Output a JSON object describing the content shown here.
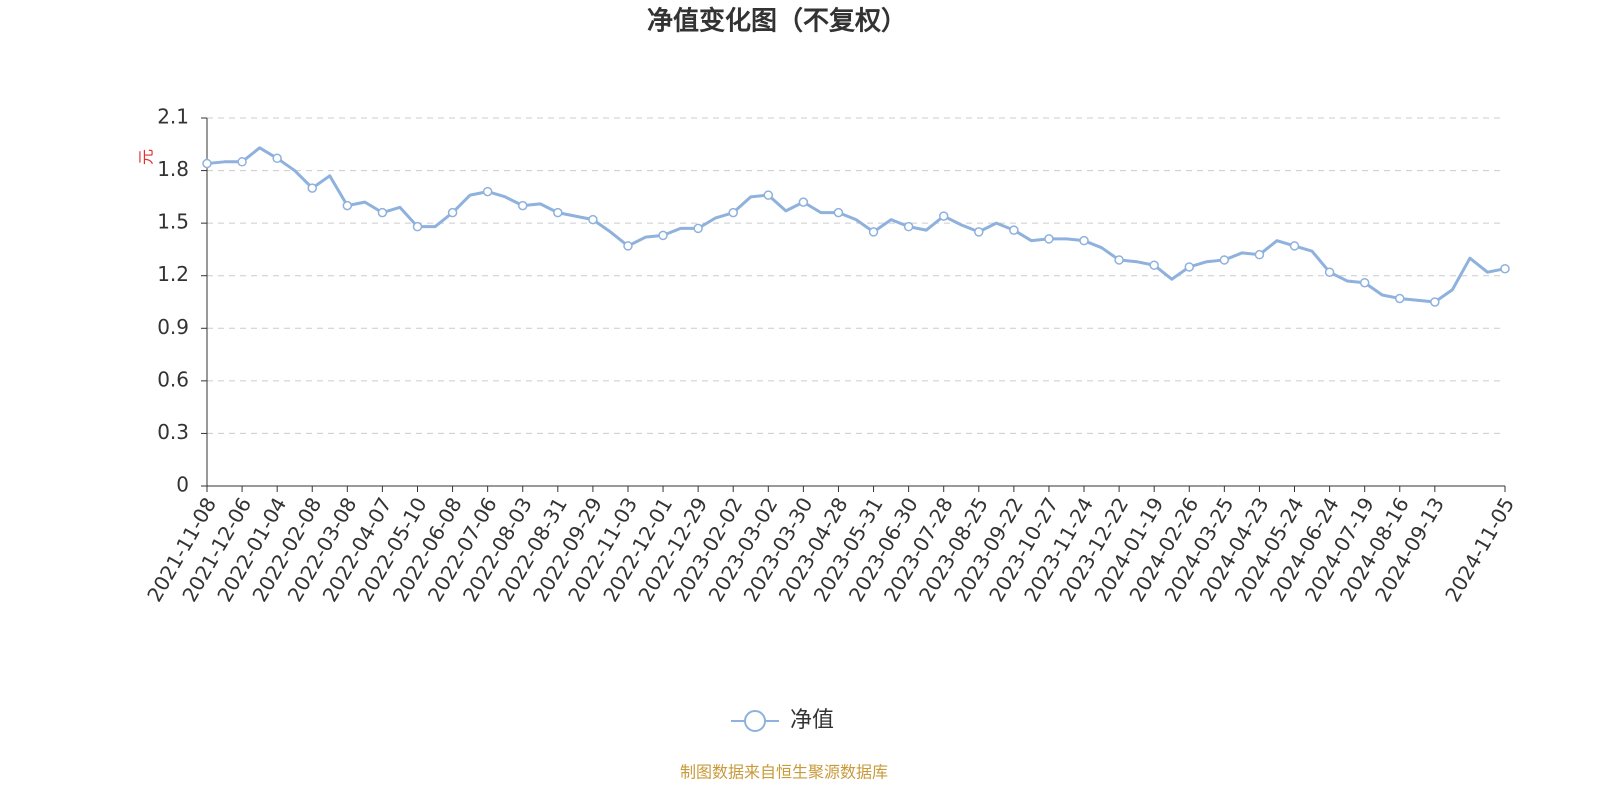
{
  "chart_data": {
    "type": "line",
    "title": "净值变化图（不复权）",
    "y_unit": "元",
    "source": "制图数据来自恒生聚源数据库",
    "categories": [
      "2021-11-08",
      null,
      "2021-12-06",
      null,
      "2022-01-04",
      null,
      "2022-02-08",
      null,
      "2022-03-08",
      null,
      "2022-04-07",
      null,
      "2022-05-10",
      null,
      "2022-06-08",
      null,
      "2022-07-06",
      null,
      "2022-08-03",
      null,
      "2022-08-31",
      null,
      "2022-09-29",
      null,
      "2022-11-03",
      null,
      "2022-12-01",
      null,
      "2022-12-29",
      null,
      "2023-02-02",
      null,
      "2023-03-02",
      null,
      "2023-03-30",
      null,
      "2023-04-28",
      null,
      "2023-05-31",
      null,
      "2023-06-30",
      null,
      "2023-07-28",
      null,
      "2023-08-25",
      null,
      "2023-09-22",
      null,
      "2023-10-27",
      null,
      "2023-11-24",
      null,
      "2023-12-22",
      null,
      "2024-01-19",
      null,
      "2024-02-26",
      null,
      "2024-03-25",
      null,
      "2024-04-23",
      null,
      "2024-05-24",
      null,
      "2024-06-24",
      null,
      "2024-07-19",
      null,
      "2024-08-16",
      null,
      "2024-09-13",
      null,
      null,
      null,
      "2024-11-05"
    ],
    "series": [
      {
        "name": "净值",
        "color": "#8eb1dd",
        "values": [
          1.84,
          1.85,
          1.85,
          1.93,
          1.87,
          1.8,
          1.7,
          1.77,
          1.6,
          1.62,
          1.56,
          1.59,
          1.48,
          1.48,
          1.56,
          1.66,
          1.68,
          1.65,
          1.6,
          1.61,
          1.56,
          1.54,
          1.52,
          1.45,
          1.37,
          1.42,
          1.43,
          1.47,
          1.47,
          1.53,
          1.56,
          1.65,
          1.66,
          1.57,
          1.62,
          1.56,
          1.56,
          1.52,
          1.45,
          1.52,
          1.48,
          1.46,
          1.54,
          1.49,
          1.45,
          1.5,
          1.46,
          1.4,
          1.41,
          1.41,
          1.4,
          1.36,
          1.29,
          1.28,
          1.26,
          1.18,
          1.25,
          1.28,
          1.29,
          1.33,
          1.32,
          1.4,
          1.37,
          1.34,
          1.22,
          1.17,
          1.16,
          1.09,
          1.07,
          1.06,
          1.05,
          1.12,
          1.3,
          1.22,
          1.24
        ]
      }
    ],
    "ylim": [
      0,
      2.1
    ],
    "yticks": [
      0,
      0.3,
      0.6,
      0.9,
      1.2,
      1.5,
      1.8,
      2.1
    ],
    "grid": true,
    "legend": "bottom"
  }
}
